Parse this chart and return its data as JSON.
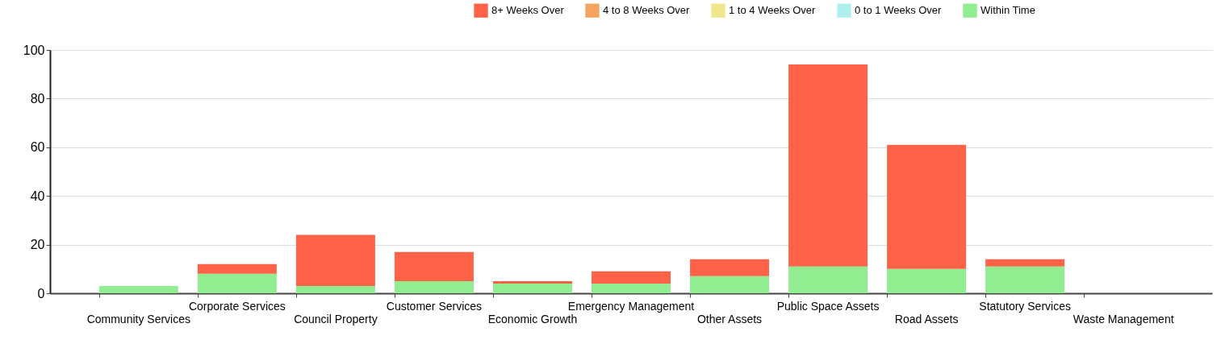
{
  "chart_data": {
    "type": "bar",
    "stacked": true,
    "categories": [
      "Community Services",
      "Corporate Services",
      "Council Property",
      "Customer Services",
      "Economic Growth",
      "Emergency Management",
      "Other Assets",
      "Public Space Assets",
      "Road Assets",
      "Statutory Services",
      "Waste Management"
    ],
    "series": [
      {
        "name": "Within Time",
        "color": "#90ee90",
        "values": [
          3,
          8,
          3,
          5,
          4,
          4,
          7,
          11,
          10,
          11,
          0
        ]
      },
      {
        "name": "0 to 1 Weeks Over",
        "color": "#afeeee",
        "values": [
          0,
          0,
          0,
          0,
          0,
          0,
          0,
          0,
          0,
          0,
          0
        ]
      },
      {
        "name": "1 to 4 Weeks Over",
        "color": "#f0e68c",
        "values": [
          0,
          0,
          0,
          0,
          0,
          0,
          0,
          0,
          0,
          0,
          0
        ]
      },
      {
        "name": "4 to 8 Weeks Over",
        "color": "#f4a460",
        "values": [
          0,
          0,
          0,
          0,
          0,
          0,
          0,
          0,
          0,
          0,
          0
        ]
      },
      {
        "name": "8+ Weeks Over",
        "color": "#ff6347",
        "values": [
          0,
          4,
          21,
          12,
          1,
          5,
          7,
          83,
          51,
          3,
          0
        ]
      }
    ],
    "ylim": [
      0,
      100
    ],
    "yticks": [
      0,
      20,
      40,
      60,
      80,
      100
    ],
    "grid": "y",
    "legend": "top right"
  }
}
